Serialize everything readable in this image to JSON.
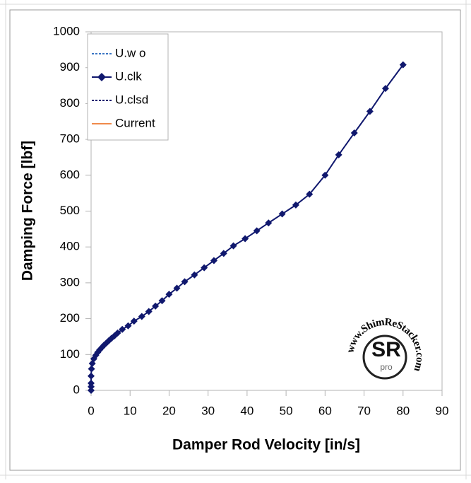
{
  "chart_data": {
    "type": "line",
    "xlabel": "Damper Rod Velocity [in/s]",
    "ylabel": "Damping Force [lbf]",
    "xlim": [
      0,
      90
    ],
    "xticks": [
      0,
      10,
      20,
      30,
      40,
      50,
      60,
      70,
      80,
      90
    ],
    "ylim": [
      0,
      1000
    ],
    "yticks": [
      0,
      100,
      200,
      300,
      400,
      500,
      600,
      700,
      800,
      900,
      1000
    ],
    "grid": false,
    "legend": "upper left",
    "series": [
      {
        "name": "U.w o",
        "color": "#3a75c4",
        "dash": true,
        "marker": false,
        "x": [],
        "values": []
      },
      {
        "name": "U.clk",
        "color": "#10186e",
        "dash": false,
        "marker": true,
        "x": [
          0,
          0,
          0,
          0,
          0.1,
          0.3,
          0.7,
          1.2,
          1.7,
          2.2,
          2.8,
          3.3,
          3.9,
          4.5,
          5.2,
          6,
          6.8,
          8,
          9.5,
          11,
          13,
          14.8,
          16.5,
          18.2,
          20,
          22,
          24,
          26.5,
          29,
          31.5,
          34,
          36.5,
          39.5,
          42.5,
          45.5,
          49,
          52.5,
          56,
          60,
          63.5,
          67.5,
          71.5,
          75.5,
          80
        ],
        "values": [
          0,
          10,
          20,
          40,
          60,
          75,
          88,
          98,
          106,
          113,
          120,
          126,
          132,
          138,
          145,
          152,
          160,
          170,
          180,
          193,
          206,
          220,
          235,
          250,
          268,
          285,
          303,
          322,
          342,
          362,
          382,
          403,
          423,
          445,
          467,
          492,
          517,
          547,
          600,
          657,
          718,
          778,
          842,
          908
        ]
      },
      {
        "name": "U.clsd",
        "color": "#10186e",
        "dash": true,
        "marker": false,
        "x": [],
        "values": []
      },
      {
        "name": "Current",
        "color": "#f08a4b",
        "dash": false,
        "marker": false,
        "x": [],
        "values": []
      }
    ],
    "watermark": {
      "text": "www.ShimReStacker.com",
      "logo": "SR",
      "sub": "pro"
    }
  }
}
